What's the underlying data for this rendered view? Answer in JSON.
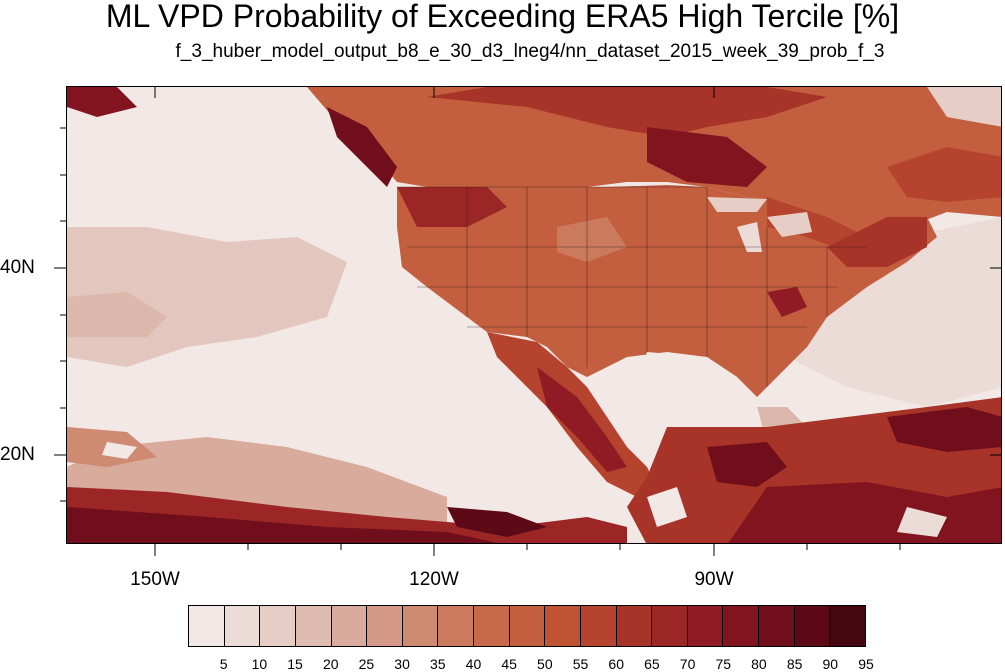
{
  "header": {
    "title": "ML VPD Probability of Exceeding ERA5 High Tercile [%]",
    "subtitle": "f_3_huber_model_output_b8_e_30_d3_lneg4/nn_dataset_2015_week_39_prob_f_3"
  },
  "map": {
    "lat_labels": [
      "40N",
      "20N"
    ],
    "lon_labels": [
      "150W",
      "120W",
      "90W"
    ]
  },
  "colorbar": {
    "labels": [
      "5",
      "10",
      "15",
      "20",
      "25",
      "30",
      "35",
      "40",
      "45",
      "50",
      "55",
      "60",
      "65",
      "70",
      "75",
      "80",
      "85",
      "90",
      "95"
    ],
    "colors": [
      "#f2e8e6",
      "#ecdcd7",
      "#e6cdc6",
      "#dfbcb1",
      "#d9ab9c",
      "#d49a87",
      "#cf8a72",
      "#cb7a5e",
      "#c76a4c",
      "#c35e3f",
      "#bf5334",
      "#b5432d",
      "#a83329",
      "#9c2626",
      "#901b24",
      "#821420",
      "#700e1b",
      "#5d0a16",
      "#440610"
    ]
  }
}
